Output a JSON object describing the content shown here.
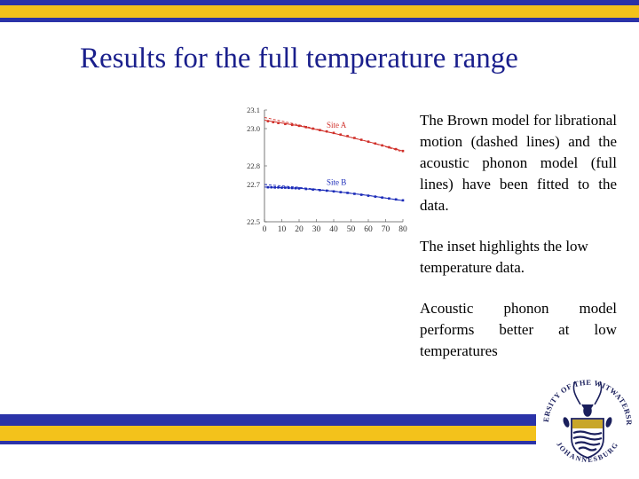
{
  "slide": {
    "title": "Results for the full temperature range",
    "paragraphs": [
      "The Brown model for librational motion (dashed lines) and the acoustic phonon model (full lines) have been fitted to the data.",
      "The inset highlights the low temperature data.",
      "Acoustic phonon model performs better at low temperatures"
    ],
    "logo": {
      "arc_top": "UNIVERSITY OF THE WITWATERSRAND",
      "arc_bottom": "JOHANNESBURG"
    }
  },
  "colors": {
    "brand_blue": "#2b33a8",
    "brand_gold": "#f3c21b",
    "title": "#1a1f8c",
    "site_a": "#d0302a",
    "site_b": "#1a2ab8"
  },
  "chart_data": {
    "type": "scatter",
    "title": "",
    "xlabel": "",
    "ylabel": "",
    "xlim": [
      0,
      80
    ],
    "ylim": [
      22.5,
      23.1
    ],
    "x_ticks": [
      "0",
      "10",
      "20",
      "30",
      "40",
      "50",
      "60",
      "70",
      "80"
    ],
    "y_ticks": [
      {
        "value": 22.5,
        "label": "22.5"
      },
      {
        "value": 22.7,
        "label": "22.7"
      },
      {
        "value": 22.8,
        "label": "22.8"
      },
      {
        "value": 23.0,
        "label": "23.0"
      },
      {
        "value": 23.1,
        "label": "23.1"
      }
    ],
    "grid": false,
    "series": [
      {
        "name": "Site A",
        "color": "#d0302a",
        "x": [
          2,
          5,
          8,
          12,
          16,
          20,
          24,
          28,
          32,
          36,
          40,
          44,
          48,
          52,
          56,
          60,
          64,
          68,
          72,
          76,
          80
        ],
        "y": [
          23.04,
          23.035,
          23.03,
          23.025,
          23.02,
          23.015,
          23.008,
          23.0,
          22.992,
          22.985,
          22.977,
          22.968,
          22.96,
          22.95,
          22.94,
          22.93,
          22.92,
          22.91,
          22.9,
          22.89,
          22.88
        ],
        "fit_dashed": [
          [
            0,
            23.06
          ],
          [
            20,
            23.02
          ],
          [
            40,
            22.975
          ],
          [
            60,
            22.93
          ],
          [
            80,
            22.875
          ]
        ],
        "fit_full": [
          [
            0,
            23.045
          ],
          [
            20,
            23.015
          ],
          [
            40,
            22.975
          ],
          [
            60,
            22.93
          ],
          [
            80,
            22.88
          ]
        ]
      },
      {
        "name": "Site B",
        "color": "#1a2ab8",
        "x": [
          2,
          4,
          6,
          8,
          10,
          12,
          14,
          16,
          18,
          20,
          24,
          28,
          32,
          36,
          40,
          44,
          48,
          52,
          56,
          60,
          64,
          68,
          72,
          76,
          80
        ],
        "y": [
          22.685,
          22.685,
          22.684,
          22.684,
          22.683,
          22.683,
          22.682,
          22.681,
          22.68,
          22.679,
          22.676,
          22.673,
          22.67,
          22.667,
          22.663,
          22.659,
          22.655,
          22.65,
          22.645,
          22.64,
          22.635,
          22.63,
          22.625,
          22.62,
          22.615
        ],
        "fit_dashed": [
          [
            0,
            22.7
          ],
          [
            20,
            22.685
          ],
          [
            40,
            22.665
          ],
          [
            60,
            22.642
          ],
          [
            80,
            22.613
          ]
        ],
        "fit_full": [
          [
            0,
            22.686
          ],
          [
            20,
            22.68
          ],
          [
            40,
            22.664
          ],
          [
            60,
            22.641
          ],
          [
            80,
            22.614
          ]
        ]
      }
    ]
  }
}
